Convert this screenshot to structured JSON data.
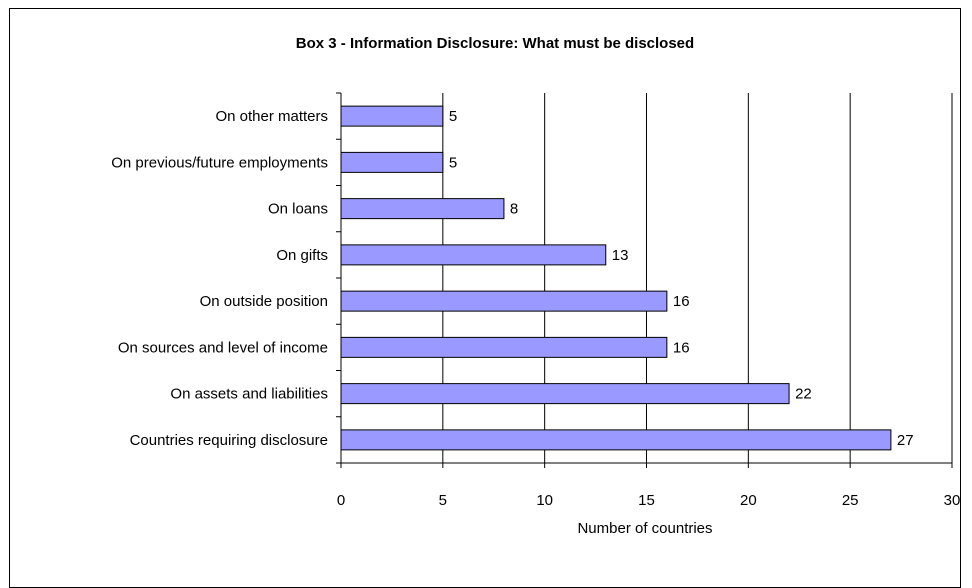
{
  "chart_data": {
    "type": "bar",
    "orientation": "horizontal",
    "title": "Box 3 - Information Disclosure:  What must be disclosed",
    "xlabel": "Number of countries",
    "ylabel": "",
    "categories": [
      "On other matters",
      "On previous/future employments",
      "On loans",
      "On gifts",
      "On outside position",
      "On sources and level of income",
      "On assets and liabilities",
      "Countries requiring disclosure"
    ],
    "values": [
      5,
      5,
      8,
      13,
      16,
      16,
      22,
      27
    ],
    "xlim": [
      0,
      30
    ],
    "xticks": [
      0,
      5,
      10,
      15,
      20,
      25,
      30
    ],
    "grid": "vertical",
    "legend": "none",
    "colors": {
      "bar": "#9999ff",
      "bar_stroke": "#000000",
      "grid": "#000000"
    }
  }
}
